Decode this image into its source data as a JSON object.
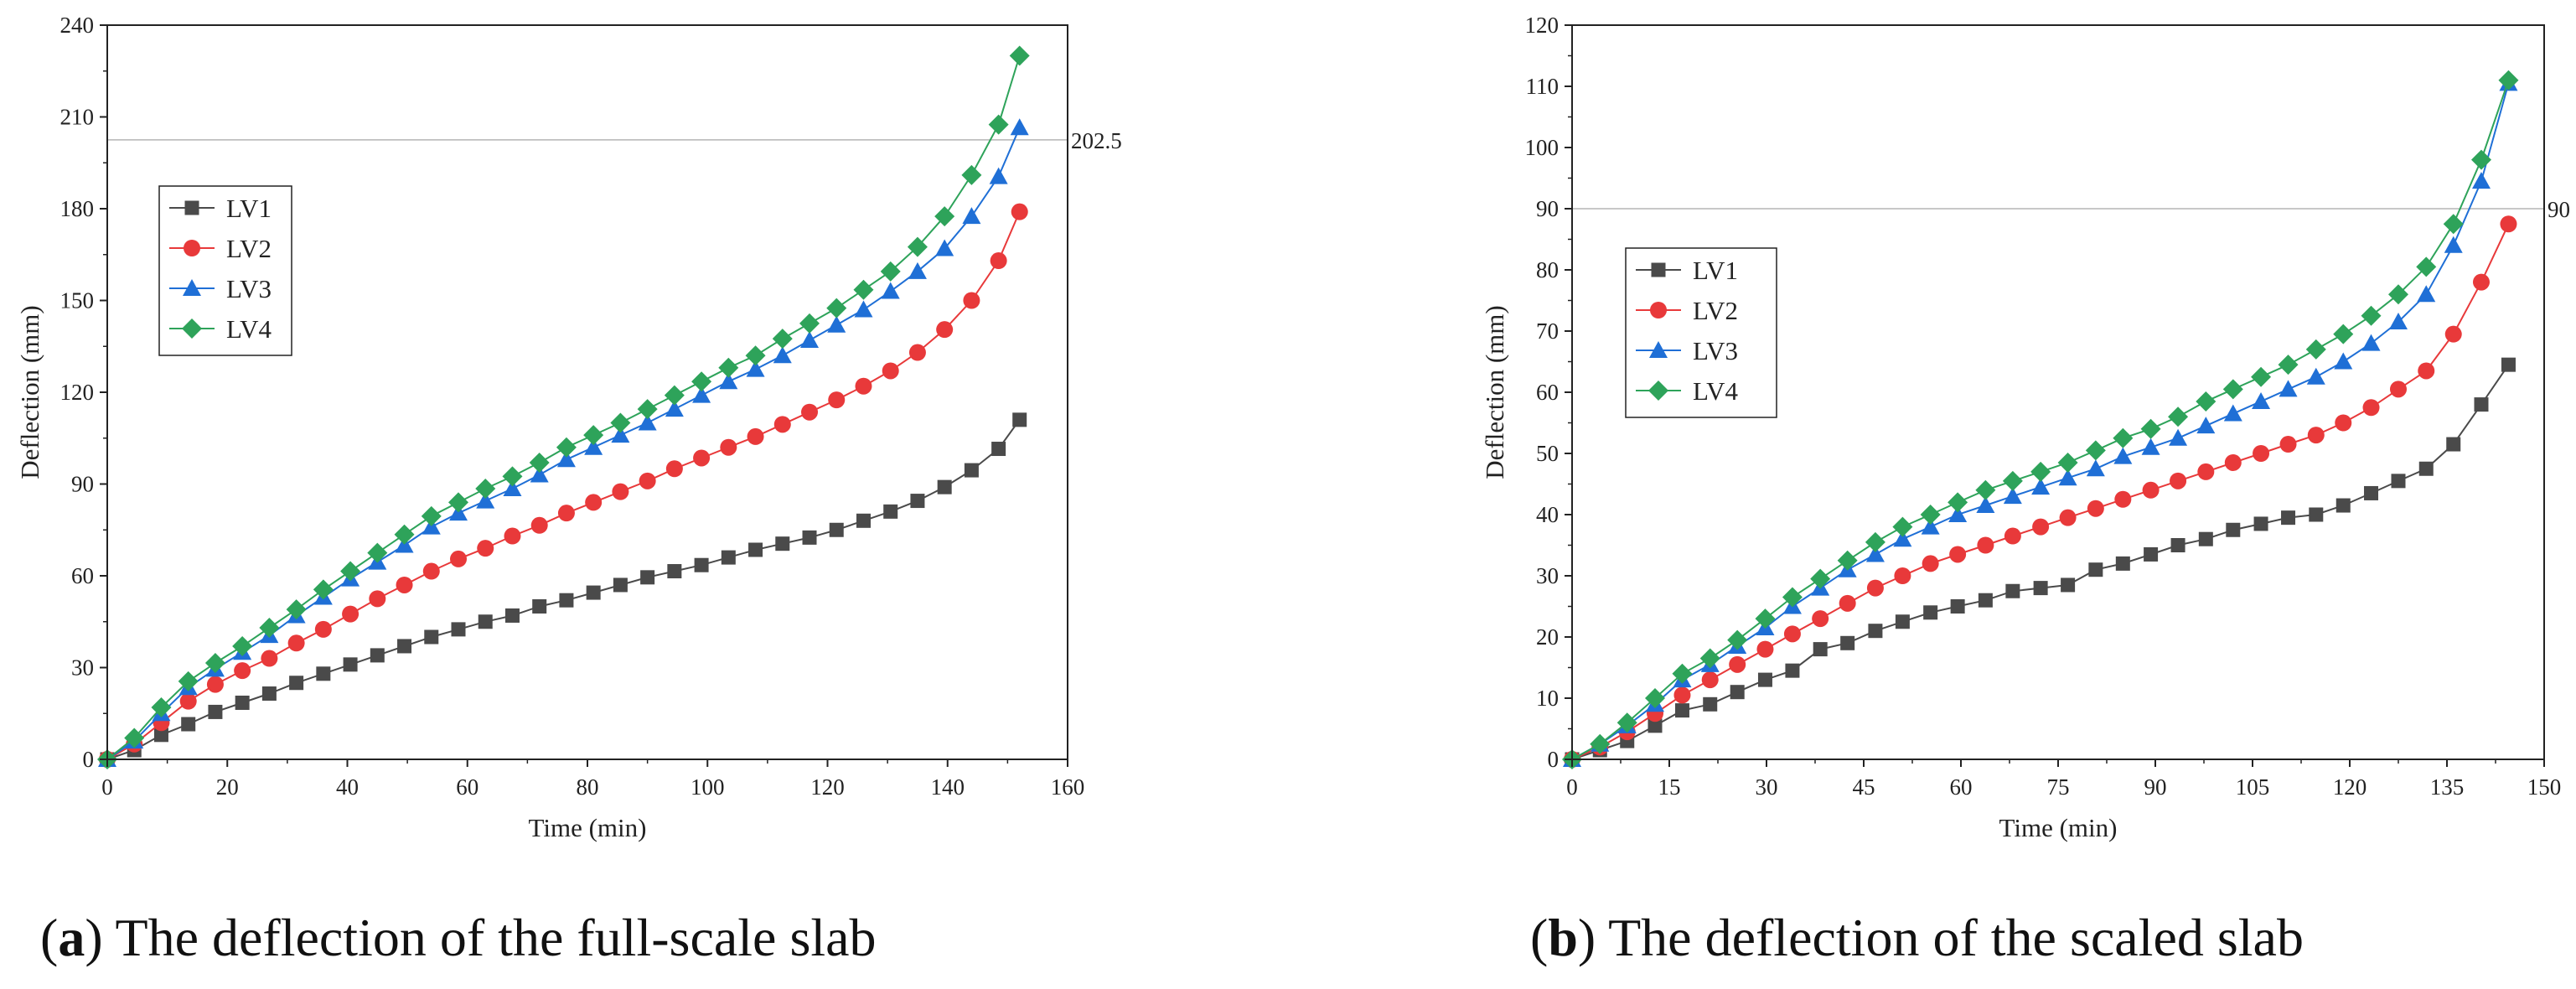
{
  "chart_data": [
    {
      "type": "line",
      "caption": {
        "letter": "a",
        "text": "The deflection of the full-scale slab"
      },
      "xlabel": "Time (min)",
      "ylabel": "Deflection (mm)",
      "xlim": [
        0,
        160
      ],
      "ylim": [
        0,
        240
      ],
      "xticks": [
        0,
        20,
        40,
        60,
        80,
        100,
        120,
        140,
        160
      ],
      "yticks": [
        0,
        30,
        60,
        90,
        120,
        150,
        180,
        210,
        240
      ],
      "reference_line": {
        "value": 202.5,
        "label": "202.5"
      },
      "legend_position": "left",
      "series": [
        {
          "name": "LV1",
          "color": "#4a4a4a",
          "marker": "square",
          "x": [
            0,
            4.5,
            9,
            13.5,
            18,
            22.5,
            27,
            31.5,
            36,
            40.5,
            45,
            49.5,
            54,
            58.5,
            63,
            67.5,
            72,
            76.5,
            81,
            85.5,
            90,
            94.5,
            99,
            103.5,
            108,
            112.5,
            117,
            121.5,
            126,
            130.5,
            135,
            139.5,
            144,
            148.5,
            152
          ],
          "y": [
            0,
            3,
            8,
            11.5,
            15.5,
            18.5,
            21.5,
            25,
            28,
            31,
            34,
            37,
            40,
            42.5,
            45,
            47,
            50,
            52,
            54.5,
            57,
            59.5,
            61.5,
            63.5,
            66,
            68.5,
            70.5,
            72.5,
            75,
            78,
            81,
            84.5,
            89,
            94.5,
            101.5,
            111
          ]
        },
        {
          "name": "LV2",
          "color": "#e8393a",
          "marker": "circle",
          "x": [
            0,
            4.5,
            9,
            13.5,
            18,
            22.5,
            27,
            31.5,
            36,
            40.5,
            45,
            49.5,
            54,
            58.5,
            63,
            67.5,
            72,
            76.5,
            81,
            85.5,
            90,
            94.5,
            99,
            103.5,
            108,
            112.5,
            117,
            121.5,
            126,
            130.5,
            135,
            139.5,
            144,
            148.5,
            152
          ],
          "y": [
            0,
            5,
            12,
            19,
            24.5,
            29,
            33,
            38,
            42.5,
            47.5,
            52.5,
            57,
            61.5,
            65.5,
            69,
            73,
            76.5,
            80.5,
            84,
            87.5,
            91,
            95,
            98.5,
            102,
            105.5,
            109.5,
            113.5,
            117.5,
            122,
            127,
            133,
            140.5,
            150,
            163,
            179
          ]
        },
        {
          "name": "LV3",
          "color": "#1f6fd6",
          "marker": "triangle",
          "x": [
            0,
            4.5,
            9,
            13.5,
            18,
            22.5,
            27,
            31.5,
            36,
            40.5,
            45,
            49.5,
            54,
            58.5,
            63,
            67.5,
            72,
            76.5,
            81,
            85.5,
            90,
            94.5,
            99,
            103.5,
            108,
            112.5,
            117,
            121.5,
            126,
            130.5,
            135,
            139.5,
            144,
            148.5,
            152
          ],
          "y": [
            0,
            6,
            15,
            23.5,
            29.5,
            35,
            40.5,
            47,
            53,
            59,
            64.5,
            70,
            76,
            80.5,
            84.5,
            88.5,
            93,
            98,
            102,
            106,
            110,
            114.5,
            119,
            123.5,
            127.5,
            132,
            137,
            142,
            147,
            153,
            159.5,
            167,
            177.5,
            190.5,
            206.5
          ]
        },
        {
          "name": "LV4",
          "color": "#2ea35a",
          "marker": "diamond",
          "x": [
            0,
            4.5,
            9,
            13.5,
            18,
            22.5,
            27,
            31.5,
            36,
            40.5,
            45,
            49.5,
            54,
            58.5,
            63,
            67.5,
            72,
            76.5,
            81,
            85.5,
            90,
            94.5,
            99,
            103.5,
            108,
            112.5,
            117,
            121.5,
            126,
            130.5,
            135,
            139.5,
            144,
            148.5,
            152
          ],
          "y": [
            0,
            7,
            17,
            25.5,
            31.5,
            37,
            43,
            49,
            55.5,
            61.5,
            67.5,
            73.5,
            79.5,
            84,
            88.5,
            92.5,
            97,
            102,
            106,
            110,
            114.5,
            119,
            123.5,
            128,
            132,
            137.5,
            142.5,
            147.5,
            153.5,
            159.5,
            167.5,
            177.5,
            191,
            207.5,
            230
          ]
        }
      ]
    },
    {
      "type": "line",
      "caption": {
        "letter": "b",
        "text": "The deflection of the scaled slab"
      },
      "xlabel": "Time (min)",
      "ylabel": "Deflection (mm)",
      "xlim": [
        0,
        150
      ],
      "ylim": [
        0,
        120
      ],
      "xticks": [
        0,
        15,
        30,
        45,
        60,
        75,
        90,
        105,
        120,
        135,
        150
      ],
      "yticks": [
        0,
        10,
        20,
        30,
        40,
        50,
        60,
        70,
        80,
        90,
        100,
        110,
        120
      ],
      "reference_line": {
        "value": 90,
        "label": "90"
      },
      "legend_position": "left",
      "series": [
        {
          "name": "LV1",
          "color": "#4a4a4a",
          "marker": "square",
          "x": [
            0,
            4.3,
            8.5,
            12.8,
            17,
            21.3,
            25.5,
            29.8,
            34,
            38.3,
            42.5,
            46.8,
            51,
            55.3,
            59.5,
            63.8,
            68,
            72.3,
            76.5,
            80.8,
            85,
            89.3,
            93.5,
            97.8,
            102,
            106.3,
            110.5,
            114.8,
            119,
            123.3,
            127.5,
            131.8,
            136,
            140.3,
            144.5
          ],
          "y": [
            0,
            1.5,
            3,
            5.5,
            8,
            9,
            11,
            13,
            14.5,
            18,
            19,
            21,
            22.5,
            24,
            25,
            26,
            27.5,
            28,
            28.5,
            31,
            32,
            33.5,
            35,
            36,
            37.5,
            38.5,
            39.5,
            40,
            41.5,
            43.5,
            45.5,
            47.5,
            51.5,
            58,
            64.5
          ]
        },
        {
          "name": "LV2",
          "color": "#e8393a",
          "marker": "circle",
          "x": [
            0,
            4.3,
            8.5,
            12.8,
            17,
            21.3,
            25.5,
            29.8,
            34,
            38.3,
            42.5,
            46.8,
            51,
            55.3,
            59.5,
            63.8,
            68,
            72.3,
            76.5,
            80.8,
            85,
            89.3,
            93.5,
            97.8,
            102,
            106.3,
            110.5,
            114.8,
            119,
            123.3,
            127.5,
            131.8,
            136,
            140.3,
            144.5
          ],
          "y": [
            0,
            2,
            4.5,
            7.5,
            10.5,
            13,
            15.5,
            18,
            20.5,
            23,
            25.5,
            28,
            30,
            32,
            33.5,
            35,
            36.5,
            38,
            39.5,
            41,
            42.5,
            44,
            45.5,
            47,
            48.5,
            50,
            51.5,
            53,
            55,
            57.5,
            60.5,
            63.5,
            69.5,
            78,
            87.5
          ]
        },
        {
          "name": "LV3",
          "color": "#1f6fd6",
          "marker": "triangle",
          "x": [
            0,
            4.3,
            8.5,
            12.8,
            17,
            21.3,
            25.5,
            29.8,
            34,
            38.3,
            42.5,
            46.8,
            51,
            55.3,
            59.5,
            63.8,
            68,
            72.3,
            76.5,
            80.8,
            85,
            89.3,
            93.5,
            97.8,
            102,
            106.3,
            110.5,
            114.8,
            119,
            123.3,
            127.5,
            131.8,
            136,
            140.3,
            144.5
          ],
          "y": [
            0,
            2.5,
            5.5,
            9,
            13,
            15.5,
            18.5,
            21.5,
            25,
            28,
            31,
            33.5,
            36,
            38,
            40,
            41.5,
            43,
            44.5,
            46,
            47.5,
            49.5,
            51,
            52.5,
            54.5,
            56.5,
            58.5,
            60.5,
            62.5,
            65,
            68,
            71.5,
            76,
            84,
            94.5,
            110.5
          ]
        },
        {
          "name": "LV4",
          "color": "#2ea35a",
          "marker": "diamond",
          "x": [
            0,
            4.3,
            8.5,
            12.8,
            17,
            21.3,
            25.5,
            29.8,
            34,
            38.3,
            42.5,
            46.8,
            51,
            55.3,
            59.5,
            63.8,
            68,
            72.3,
            76.5,
            80.8,
            85,
            89.3,
            93.5,
            97.8,
            102,
            106.3,
            110.5,
            114.8,
            119,
            123.3,
            127.5,
            131.8,
            136,
            140.3,
            144.5
          ],
          "y": [
            0,
            2.5,
            6,
            10,
            14,
            16.5,
            19.5,
            23,
            26.5,
            29.5,
            32.5,
            35.5,
            38,
            40,
            42,
            44,
            45.5,
            47,
            48.5,
            50.5,
            52.5,
            54,
            56,
            58.5,
            60.5,
            62.5,
            64.5,
            67,
            69.5,
            72.5,
            76,
            80.5,
            87.5,
            98,
            111
          ]
        }
      ]
    }
  ]
}
